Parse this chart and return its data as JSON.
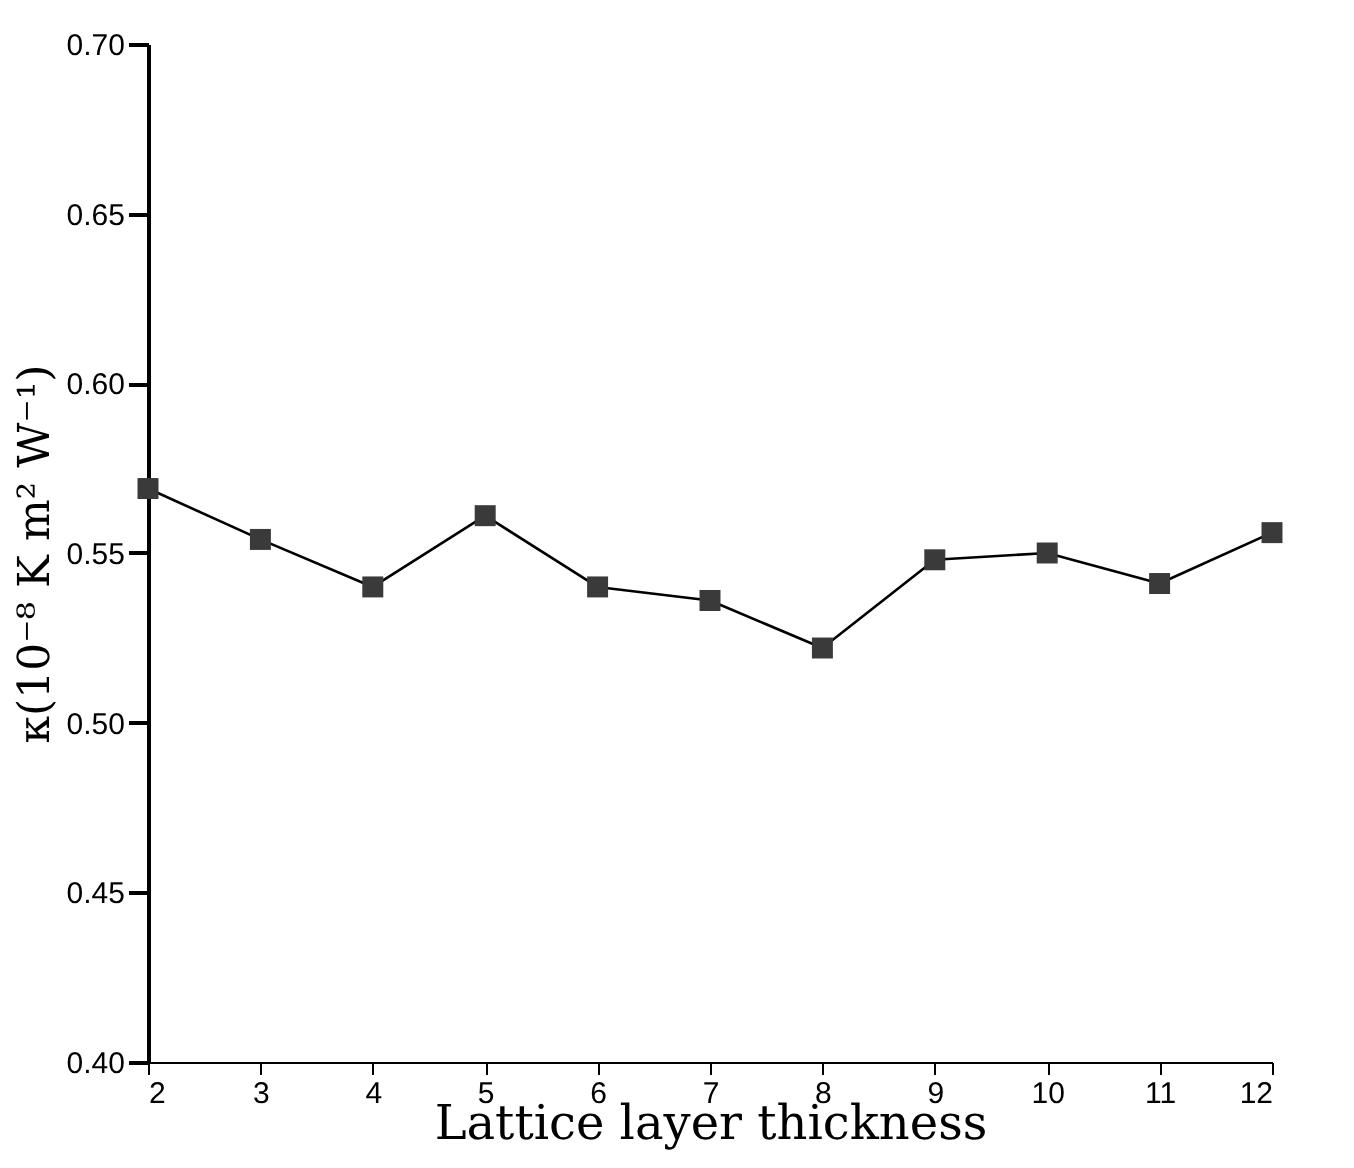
{
  "chart_data": {
    "type": "line",
    "xlabel": "Lattice layer thickness",
    "ylabel": "κ(10⁻⁸ K m² W⁻¹)",
    "x": [
      2,
      3,
      4,
      5,
      6,
      7,
      8,
      9,
      10,
      11,
      12
    ],
    "series": [
      {
        "color": "#000000",
        "values": [
          0.569,
          0.554,
          0.54,
          0.561,
          0.54,
          0.536,
          0.522,
          0.548,
          0.55,
          0.541,
          0.556
        ]
      }
    ],
    "marker": "square",
    "line_style": "solid",
    "grid": false,
    "xlim": [
      2,
      12
    ],
    "xticks": [
      2,
      3,
      4,
      5,
      6,
      7,
      8,
      9,
      10,
      11,
      12
    ],
    "ylim": [
      0.4,
      0.7
    ],
    "yticks": [
      {
        "value": 0.4,
        "label": "0.40"
      },
      {
        "value": 0.45,
        "label": "0.45"
      },
      {
        "value": 0.5,
        "label": "0.50"
      },
      {
        "value": 0.55,
        "label": "0.55"
      },
      {
        "value": 0.6,
        "label": "0.60"
      },
      {
        "value": 0.65,
        "label": "0.65"
      },
      {
        "value": 0.7,
        "label": "0.70"
      }
    ]
  }
}
